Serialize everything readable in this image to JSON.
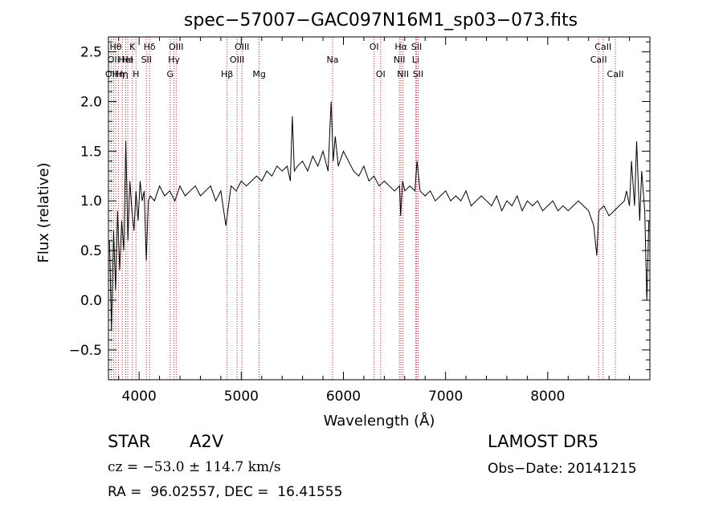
{
  "chart_data": {
    "type": "line",
    "title": "spec−57007−GAC097N16M1_sp03−073.fits",
    "xlabel": "Wavelength (Å)",
    "ylabel": "Flux (relative)",
    "xlim": [
      3700,
      9000
    ],
    "ylim": [
      -0.8,
      2.65
    ],
    "x_ticks": [
      4000,
      5000,
      6000,
      7000,
      8000
    ],
    "y_ticks": [
      -0.5,
      0.0,
      0.5,
      1.0,
      1.5,
      2.0,
      2.5
    ],
    "y_tick_labels": [
      "−0.5",
      "0.0",
      "0.5",
      "1.0",
      "1.5",
      "2.0",
      "2.5"
    ],
    "grid": false,
    "line_color": "#000000",
    "marker_color": "#b22222",
    "series": [
      {
        "x": [
          3710,
          3730,
          3750,
          3770,
          3790,
          3810,
          3830,
          3850,
          3870,
          3890,
          3910,
          3930,
          3950,
          3970,
          3990,
          4010,
          4030,
          4050,
          4070,
          4090,
          4110,
          4150,
          4200,
          4250,
          4300,
          4350,
          4400,
          4450,
          4500,
          4550,
          4600,
          4650,
          4700,
          4750,
          4800,
          4850,
          4900,
          4950,
          5000,
          5050,
          5100,
          5150,
          5200,
          5250,
          5300,
          5350,
          5400,
          5450,
          5480,
          5500,
          5520,
          5550,
          5600,
          5650,
          5700,
          5750,
          5800,
          5850,
          5880,
          5900,
          5920,
          5950,
          6000,
          6050,
          6100,
          6150,
          6200,
          6250,
          6300,
          6350,
          6400,
          6450,
          6500,
          6550,
          6560,
          6580,
          6600,
          6650,
          6700,
          6720,
          6750,
          6800,
          6850,
          6900,
          6950,
          7000,
          7050,
          7100,
          7150,
          7200,
          7250,
          7300,
          7350,
          7400,
          7450,
          7500,
          7550,
          7600,
          7650,
          7700,
          7750,
          7800,
          7850,
          7900,
          7950,
          8000,
          8050,
          8100,
          8150,
          8200,
          8250,
          8300,
          8350,
          8400,
          8450,
          8480,
          8500,
          8550,
          8600,
          8650,
          8700,
          8750,
          8770,
          8800,
          8820,
          8850,
          8870,
          8900,
          8920,
          8950,
          8970,
          8990
        ],
        "y": [
          0.6,
          -0.3,
          0.7,
          0.1,
          0.9,
          0.3,
          0.8,
          0.5,
          1.6,
          0.6,
          1.2,
          0.9,
          0.7,
          1.1,
          0.8,
          1.2,
          1.0,
          1.1,
          0.4,
          1.0,
          1.05,
          1.0,
          1.15,
          1.05,
          1.1,
          1.0,
          1.15,
          1.05,
          1.1,
          1.15,
          1.05,
          1.1,
          1.15,
          1.0,
          1.1,
          0.75,
          1.15,
          1.1,
          1.2,
          1.15,
          1.2,
          1.25,
          1.2,
          1.3,
          1.25,
          1.35,
          1.3,
          1.35,
          1.2,
          1.85,
          1.3,
          1.35,
          1.4,
          1.3,
          1.45,
          1.35,
          1.5,
          1.3,
          2.0,
          1.4,
          1.65,
          1.35,
          1.5,
          1.4,
          1.3,
          1.25,
          1.35,
          1.2,
          1.25,
          1.15,
          1.2,
          1.15,
          1.1,
          1.15,
          0.85,
          1.2,
          1.1,
          1.15,
          1.1,
          1.4,
          1.1,
          1.05,
          1.1,
          1.0,
          1.05,
          1.1,
          1.0,
          1.05,
          1.0,
          1.1,
          0.95,
          1.0,
          1.05,
          1.0,
          0.95,
          1.05,
          0.9,
          1.0,
          0.95,
          1.05,
          0.9,
          1.0,
          0.95,
          1.0,
          0.9,
          0.95,
          1.0,
          0.9,
          0.95,
          0.9,
          0.95,
          1.0,
          0.95,
          0.9,
          0.75,
          0.45,
          0.9,
          0.95,
          0.85,
          0.9,
          0.95,
          1.0,
          1.1,
          0.95,
          1.4,
          0.95,
          1.6,
          0.8,
          1.3,
          0.9,
          0.0,
          0.8
        ]
      }
    ],
    "line_markers": [
      {
        "x": 3727,
        "label": "OII",
        "row": 2
      },
      {
        "x": 3750,
        "label": "OII",
        "row": 1
      },
      {
        "x": 3771,
        "label": "Hθ",
        "row": 0
      },
      {
        "x": 3797,
        "label": "Hη",
        "row": 2
      },
      {
        "x": 3835,
        "label": "Hη",
        "row": 2
      },
      {
        "x": 3869,
        "label": "HeI",
        "row": 1
      },
      {
        "x": 3889,
        "label": "He",
        "row": 1
      },
      {
        "x": 3934,
        "label": "K",
        "row": 0
      },
      {
        "x": 3969,
        "label": "H",
        "row": 2
      },
      {
        "x": 4072,
        "label": "SII",
        "row": 1
      },
      {
        "x": 4102,
        "label": "Hδ",
        "row": 0
      },
      {
        "x": 4304,
        "label": "G",
        "row": 2
      },
      {
        "x": 4341,
        "label": "Hγ",
        "row": 1
      },
      {
        "x": 4363,
        "label": "OIII",
        "row": 0
      },
      {
        "x": 4861,
        "label": "Hβ",
        "row": 2
      },
      {
        "x": 4959,
        "label": "OIII",
        "row": 1
      },
      {
        "x": 5007,
        "label": "OIII",
        "row": 0
      },
      {
        "x": 5175,
        "label": "Mg",
        "row": 2
      },
      {
        "x": 5894,
        "label": "Na",
        "row": 1
      },
      {
        "x": 6300,
        "label": "OI",
        "row": 0
      },
      {
        "x": 6364,
        "label": "OI",
        "row": 2
      },
      {
        "x": 6548,
        "label": "NII",
        "row": 1
      },
      {
        "x": 6563,
        "label": "Hα",
        "row": 0
      },
      {
        "x": 6583,
        "label": "NII",
        "row": 2
      },
      {
        "x": 6707,
        "label": "Li",
        "row": 1
      },
      {
        "x": 6716,
        "label": "SII",
        "row": 0
      },
      {
        "x": 6731,
        "label": "SII",
        "row": 2
      },
      {
        "x": 8498,
        "label": "CaII",
        "row": 1
      },
      {
        "x": 8542,
        "label": "CaII",
        "row": 0
      },
      {
        "x": 8662,
        "label": "CaII",
        "row": 2
      }
    ]
  },
  "info": {
    "object_class": "STAR",
    "subclass": "A2V",
    "survey": "LAMOST DR5",
    "redshift_line": "cz = −53.0 ± 114.7 km/s",
    "obs_date_line": "Obs−Date: 20141215",
    "position_line": "RA =  96.02557, DEC =  16.41555"
  }
}
